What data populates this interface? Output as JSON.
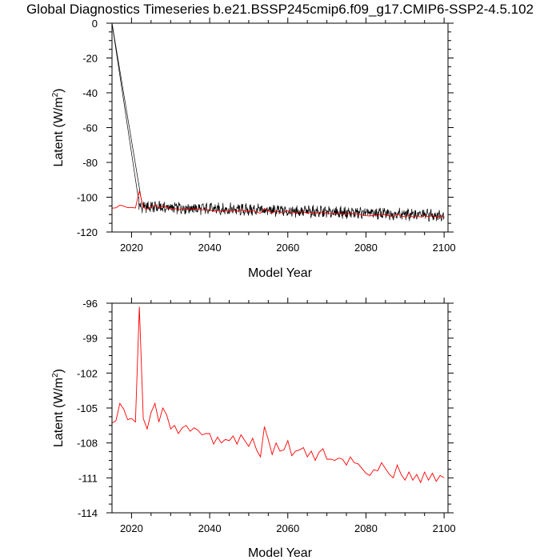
{
  "title": "Global Diagnostics Timeseries b.e21.BSSP245cmip6.f09_g17.CMIP6-SSP2-4.5.102",
  "chart_data": [
    {
      "type": "line",
      "xlabel": "Model Year",
      "ylabel": "Latent (W/m",
      "ylabel_superscript": "2",
      "ylabel_suffix": ")",
      "xlim": [
        2015,
        2101
      ],
      "ylim": [
        -120,
        0
      ],
      "x_ticks": [
        2020,
        2040,
        2060,
        2080,
        2100
      ],
      "y_ticks": [
        0,
        -20,
        -40,
        -60,
        -80,
        -100,
        -120
      ],
      "series": [
        {
          "description": "monthly",
          "color": "#000000",
          "x": [
            2015.0,
            2021.7,
            2021.9
          ],
          "y": [
            0,
            -100,
            -100
          ],
          "x2": [
            2015.0,
            2022.7,
            2022.9
          ],
          "y2": [
            0,
            -104,
            -104
          ],
          "noise_mean_start": -105.5,
          "noise_mean_end": -110.5,
          "noise_amplitude": 4.5
        },
        {
          "description": "annual",
          "color": "#ff0000",
          "x": [
            2015,
            2016,
            2017,
            2018,
            2019,
            2020,
            2021,
            2022,
            2023,
            2024,
            2025,
            2026,
            2027,
            2028,
            2029,
            2030,
            2031,
            2032,
            2033,
            2034,
            2035,
            2036,
            2037,
            2038,
            2039,
            2040,
            2041,
            2042,
            2043,
            2044,
            2045,
            2046,
            2047,
            2048,
            2049,
            2050,
            2051,
            2052,
            2053,
            2054,
            2055,
            2056,
            2057,
            2058,
            2059,
            2060,
            2061,
            2062,
            2063,
            2064,
            2065,
            2066,
            2067,
            2068,
            2069,
            2070,
            2071,
            2072,
            2073,
            2074,
            2075,
            2076,
            2077,
            2078,
            2079,
            2080,
            2081,
            2082,
            2083,
            2084,
            2085,
            2086,
            2087,
            2088,
            2089,
            2090,
            2091,
            2092,
            2093,
            2094,
            2095,
            2096,
            2097,
            2098,
            2099,
            2100
          ],
          "y": [
            -106.3,
            -106.1,
            -104.6,
            -105.1,
            -106.0,
            -105.9,
            -106.2,
            -96.3,
            -105.9,
            -106.8,
            -105.4,
            -104.6,
            -106.2,
            -105.0,
            -105.6,
            -106.8,
            -106.5,
            -107.2,
            -106.7,
            -106.5,
            -107.0,
            -106.7,
            -106.9,
            -107.3,
            -107.2,
            -107.2,
            -108.1,
            -107.5,
            -108.0,
            -107.7,
            -107.8,
            -107.4,
            -108.1,
            -107.3,
            -107.8,
            -108.3,
            -107.6,
            -108.6,
            -109.2,
            -106.6,
            -107.7,
            -109.0,
            -108.0,
            -108.7,
            -108.6,
            -107.8,
            -109.1,
            -108.7,
            -108.6,
            -108.4,
            -109.2,
            -108.7,
            -109.5,
            -108.8,
            -108.5,
            -109.4,
            -109.4,
            -109.5,
            -109.3,
            -109.4,
            -109.9,
            -109.2,
            -109.7,
            -109.8,
            -110.2,
            -110.6,
            -110.8,
            -110.3,
            -110.4,
            -109.7,
            -110.2,
            -110.7,
            -111.0,
            -109.9,
            -110.7,
            -111.2,
            -110.5,
            -111.2,
            -110.7,
            -111.4,
            -110.5,
            -111.2,
            -110.6,
            -111.3,
            -110.8,
            -111.0
          ]
        }
      ]
    },
    {
      "type": "line",
      "xlabel": "Model Year",
      "ylabel": "Latent (W/m",
      "ylabel_superscript": "2",
      "ylabel_suffix": ")",
      "xlim": [
        2015,
        2101
      ],
      "ylim": [
        -114,
        -96
      ],
      "x_ticks": [
        2020,
        2040,
        2060,
        2080,
        2100
      ],
      "y_ticks": [
        -96,
        -99,
        -102,
        -105,
        -108,
        -111,
        -114
      ],
      "series": [
        {
          "description": "annual",
          "color": "#ff0000",
          "x": [
            2015,
            2016,
            2017,
            2018,
            2019,
            2020,
            2021,
            2022,
            2023,
            2024,
            2025,
            2026,
            2027,
            2028,
            2029,
            2030,
            2031,
            2032,
            2033,
            2034,
            2035,
            2036,
            2037,
            2038,
            2039,
            2040,
            2041,
            2042,
            2043,
            2044,
            2045,
            2046,
            2047,
            2048,
            2049,
            2050,
            2051,
            2052,
            2053,
            2054,
            2055,
            2056,
            2057,
            2058,
            2059,
            2060,
            2061,
            2062,
            2063,
            2064,
            2065,
            2066,
            2067,
            2068,
            2069,
            2070,
            2071,
            2072,
            2073,
            2074,
            2075,
            2076,
            2077,
            2078,
            2079,
            2080,
            2081,
            2082,
            2083,
            2084,
            2085,
            2086,
            2087,
            2088,
            2089,
            2090,
            2091,
            2092,
            2093,
            2094,
            2095,
            2096,
            2097,
            2098,
            2099,
            2100
          ],
          "y": [
            -106.3,
            -106.1,
            -104.6,
            -105.1,
            -106.0,
            -105.9,
            -106.2,
            -96.3,
            -105.9,
            -106.8,
            -105.4,
            -104.6,
            -106.2,
            -105.0,
            -105.6,
            -106.8,
            -106.5,
            -107.2,
            -106.7,
            -106.5,
            -107.0,
            -106.7,
            -106.9,
            -107.3,
            -107.2,
            -107.2,
            -108.1,
            -107.5,
            -108.0,
            -107.7,
            -107.8,
            -107.4,
            -108.1,
            -107.3,
            -107.8,
            -108.3,
            -107.6,
            -108.6,
            -109.2,
            -106.6,
            -107.7,
            -109.0,
            -108.0,
            -108.7,
            -108.6,
            -107.8,
            -109.1,
            -108.7,
            -108.6,
            -108.4,
            -109.2,
            -108.7,
            -109.5,
            -108.8,
            -108.5,
            -109.4,
            -109.4,
            -109.5,
            -109.3,
            -109.4,
            -109.9,
            -109.2,
            -109.7,
            -109.8,
            -110.2,
            -110.6,
            -110.8,
            -110.3,
            -110.4,
            -109.7,
            -110.2,
            -110.7,
            -111.0,
            -109.9,
            -110.7,
            -111.2,
            -110.5,
            -111.2,
            -110.7,
            -111.4,
            -110.5,
            -111.2,
            -110.6,
            -111.3,
            -110.8,
            -111.0
          ]
        }
      ]
    }
  ]
}
